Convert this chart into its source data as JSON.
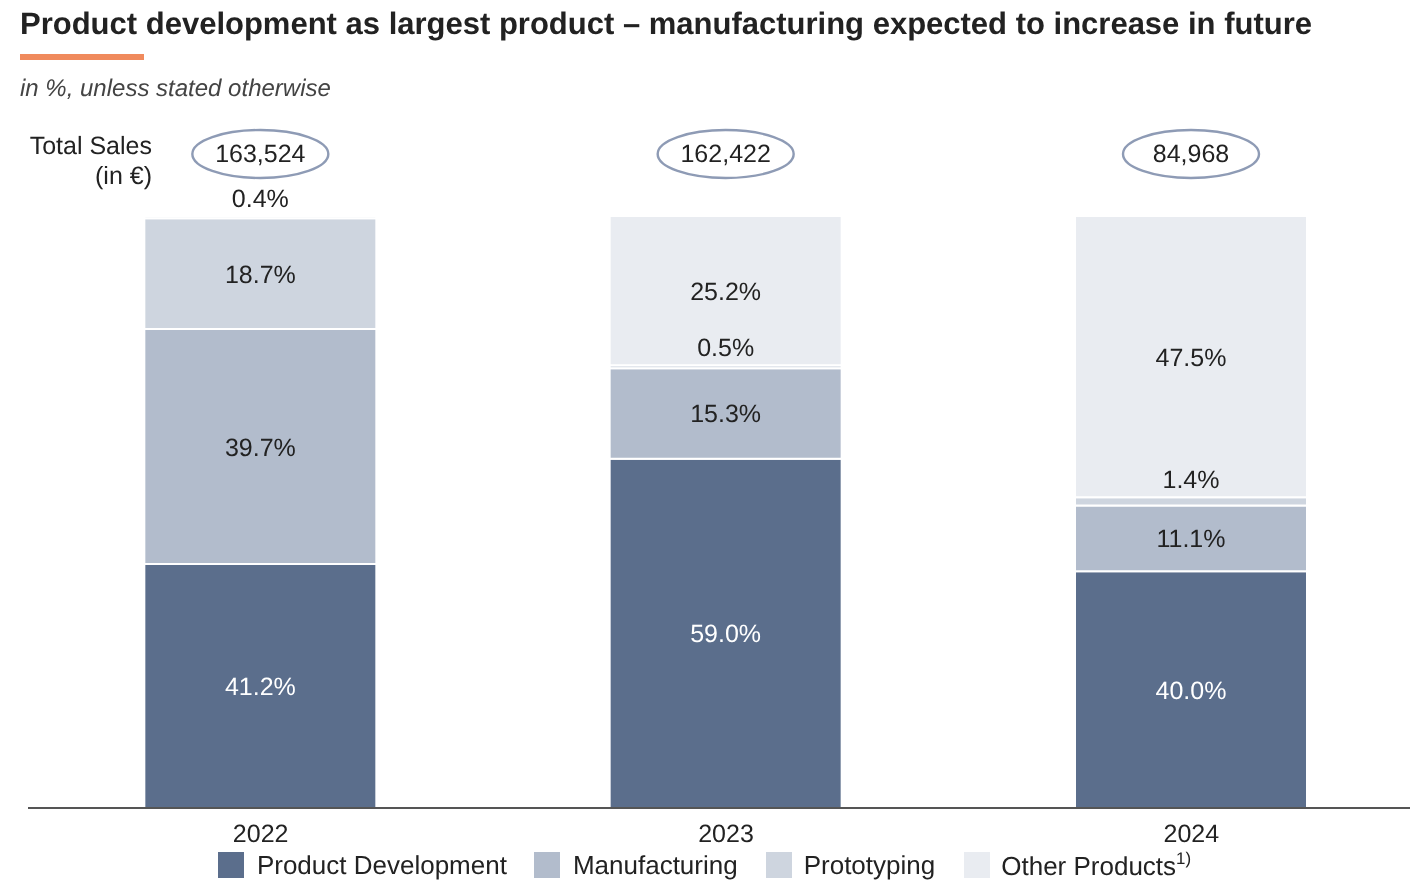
{
  "chart_data": {
    "type": "bar",
    "title": "Product development as largest product – manufacturing expected to increase in future",
    "subtitle": "in %, unless stated otherwise",
    "annotations": [
      "Total Sales (in €)",
      {
        "text": "163,524",
        "x": "2022",
        "y": 100
      },
      {
        "text": "162,422",
        "x": "2023",
        "y": 100
      },
      {
        "text": "84,968",
        "x": "2024",
        "y": 100
      }
    ],
    "categories": [
      "2022",
      "2023",
      "2024"
    ],
    "stacked": true,
    "ylim": [
      0,
      100
    ],
    "tick_labels": "x",
    "legend": "bottom",
    "series": [
      {
        "name": "Product Development",
        "color": "#5b6e8c",
        "values": [
          41.2,
          59.0,
          40.0
        ],
        "value_labels": [
          "41.2%",
          "59.0%",
          "40.0%"
        ]
      },
      {
        "name": "Manufacturing",
        "color": "#b2bccc",
        "values": [
          39.7,
          15.3,
          11.1
        ],
        "value_labels": [
          "39.7%",
          "15.3%",
          "11.1%"
        ]
      },
      {
        "name": "Prototyping",
        "color": "#ced5df",
        "values": [
          18.7,
          0.5,
          1.4
        ],
        "value_labels": [
          "18.7%",
          "0.5%",
          "1.4%"
        ]
      },
      {
        "name": "Other Products$^{1)}$",
        "color": "#e9ecf1",
        "values": [
          0.4,
          25.2,
          47.5
        ],
        "value_labels": [
          "0.4%",
          "25.2%",
          "47.5%"
        ]
      }
    ]
  }
}
